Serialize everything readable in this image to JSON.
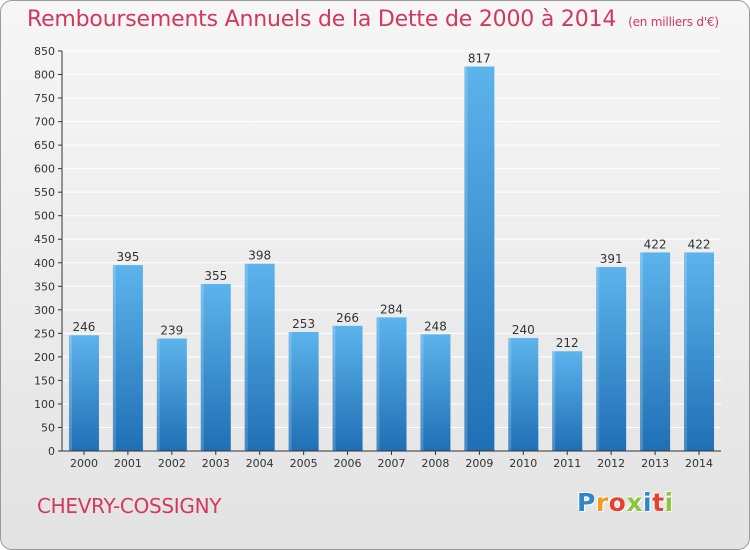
{
  "title": "Remboursements Annuels de la Dette de 2000 à 2014",
  "subtitle": "(en milliers d'€)",
  "commune": "CHEVRY-COSSIGNY",
  "logo": "Proxiti",
  "colors": {
    "title": "#d2385c",
    "bar_top": "#5db4ec",
    "bar_bottom": "#1f6fb5",
    "grid": "#ffffff",
    "axis": "#333333"
  },
  "chart_data": {
    "type": "bar",
    "title": "Remboursements Annuels de la Dette de 2000 à 2014",
    "subtitle": "(en milliers d'€)",
    "xlabel": "",
    "ylabel": "",
    "categories": [
      "2000",
      "2001",
      "2002",
      "2003",
      "2004",
      "2005",
      "2006",
      "2007",
      "2008",
      "2009",
      "2010",
      "2011",
      "2012",
      "2013",
      "2014"
    ],
    "values": [
      246,
      395,
      239,
      355,
      398,
      253,
      266,
      284,
      248,
      817,
      240,
      212,
      391,
      422,
      422
    ],
    "ylim": [
      0,
      850
    ],
    "ytick_step": 50,
    "grid": true,
    "legend": "none",
    "data_labels": true
  }
}
